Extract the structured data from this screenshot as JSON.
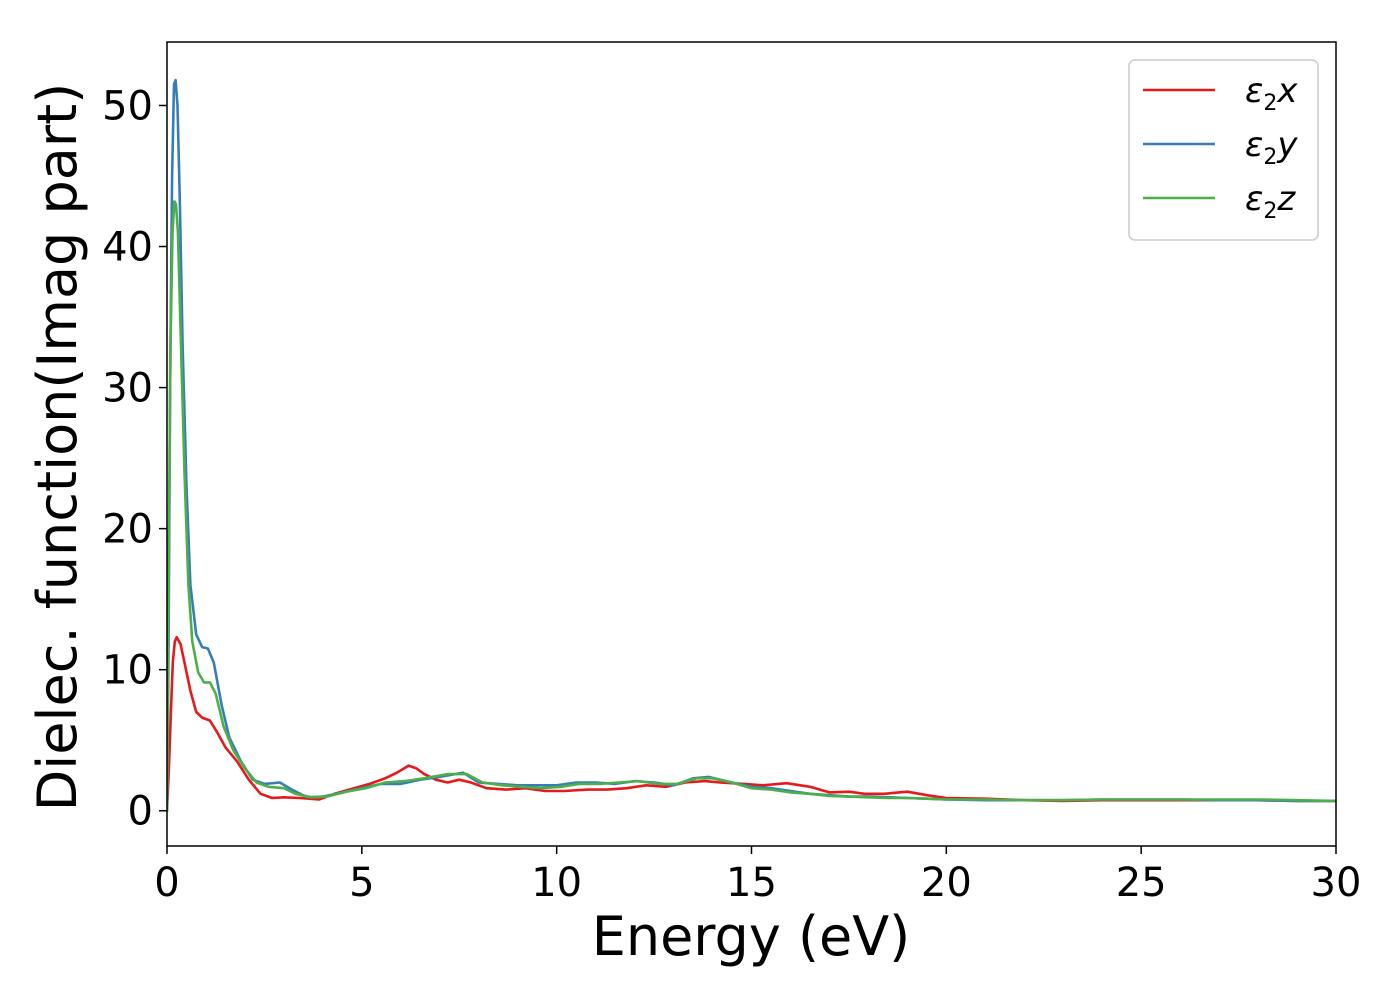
{
  "chart_data": {
    "type": "line",
    "xlabel": "Energy (eV)",
    "ylabel": "Dielec. function(Imag part)",
    "xlim": [
      0,
      30
    ],
    "ylim": [
      -2.5,
      54.5
    ],
    "xticks": [
      0,
      5,
      10,
      15,
      20,
      25,
      30
    ],
    "yticks": [
      0,
      10,
      20,
      30,
      40,
      50
    ],
    "grid": false,
    "legend_position": "top-right",
    "legend_symbol": "ε",
    "legend_subscript": "2",
    "series": [
      {
        "name": "ε2x",
        "var": "x",
        "color": "#e41a1c",
        "points": [
          [
            0,
            0
          ],
          [
            0.05,
            3.0
          ],
          [
            0.1,
            7.0
          ],
          [
            0.15,
            10.5
          ],
          [
            0.2,
            12.0
          ],
          [
            0.25,
            12.3
          ],
          [
            0.35,
            11.8
          ],
          [
            0.45,
            10.5
          ],
          [
            0.6,
            8.5
          ],
          [
            0.75,
            7.0
          ],
          [
            0.9,
            6.6
          ],
          [
            1.1,
            6.4
          ],
          [
            1.3,
            5.5
          ],
          [
            1.5,
            4.5
          ],
          [
            1.8,
            3.5
          ],
          [
            2.1,
            2.2
          ],
          [
            2.4,
            1.2
          ],
          [
            2.7,
            0.9
          ],
          [
            3.0,
            0.95
          ],
          [
            3.4,
            0.9
          ],
          [
            3.9,
            0.8
          ],
          [
            4.3,
            1.2
          ],
          [
            4.8,
            1.6
          ],
          [
            5.2,
            1.9
          ],
          [
            5.6,
            2.3
          ],
          [
            5.9,
            2.7
          ],
          [
            6.2,
            3.2
          ],
          [
            6.4,
            3.0
          ],
          [
            6.6,
            2.6
          ],
          [
            6.9,
            2.2
          ],
          [
            7.2,
            2.0
          ],
          [
            7.5,
            2.2
          ],
          [
            7.8,
            2.0
          ],
          [
            8.2,
            1.6
          ],
          [
            8.7,
            1.5
          ],
          [
            9.2,
            1.6
          ],
          [
            9.7,
            1.4
          ],
          [
            10.2,
            1.4
          ],
          [
            10.8,
            1.5
          ],
          [
            11.3,
            1.5
          ],
          [
            11.8,
            1.6
          ],
          [
            12.3,
            1.8
          ],
          [
            12.8,
            1.7
          ],
          [
            13.3,
            2.0
          ],
          [
            13.8,
            2.1
          ],
          [
            14.2,
            2.0
          ],
          [
            14.8,
            1.9
          ],
          [
            15.3,
            1.8
          ],
          [
            15.9,
            1.95
          ],
          [
            16.5,
            1.7
          ],
          [
            17.0,
            1.3
          ],
          [
            17.5,
            1.35
          ],
          [
            17.9,
            1.2
          ],
          [
            18.4,
            1.2
          ],
          [
            19.0,
            1.35
          ],
          [
            19.5,
            1.1
          ],
          [
            20.0,
            0.9
          ],
          [
            21.0,
            0.85
          ],
          [
            22.0,
            0.75
          ],
          [
            23.0,
            0.7
          ],
          [
            24.0,
            0.75
          ],
          [
            25.0,
            0.75
          ],
          [
            26.0,
            0.75
          ],
          [
            27.0,
            0.75
          ],
          [
            28.0,
            0.75
          ],
          [
            29.0,
            0.7
          ],
          [
            30.0,
            0.7
          ]
        ]
      },
      {
        "name": "ε2y",
        "var": "y",
        "color": "#377eb8",
        "points": [
          [
            0,
            0
          ],
          [
            0.04,
            12.0
          ],
          [
            0.08,
            30.0
          ],
          [
            0.13,
            45.0
          ],
          [
            0.18,
            51.5
          ],
          [
            0.22,
            51.8
          ],
          [
            0.27,
            50.0
          ],
          [
            0.33,
            43.0
          ],
          [
            0.4,
            33.0
          ],
          [
            0.5,
            23.0
          ],
          [
            0.6,
            16.0
          ],
          [
            0.75,
            12.5
          ],
          [
            0.9,
            11.6
          ],
          [
            1.05,
            11.5
          ],
          [
            1.2,
            10.5
          ],
          [
            1.4,
            7.5
          ],
          [
            1.6,
            5.2
          ],
          [
            1.9,
            3.5
          ],
          [
            2.2,
            2.2
          ],
          [
            2.5,
            1.9
          ],
          [
            2.9,
            2.0
          ],
          [
            3.2,
            1.5
          ],
          [
            3.6,
            0.95
          ],
          [
            4.0,
            1.0
          ],
          [
            4.5,
            1.3
          ],
          [
            5.0,
            1.6
          ],
          [
            5.5,
            1.9
          ],
          [
            6.0,
            1.9
          ],
          [
            6.5,
            2.2
          ],
          [
            7.0,
            2.4
          ],
          [
            7.6,
            2.7
          ],
          [
            8.0,
            2.0
          ],
          [
            8.5,
            1.9
          ],
          [
            9.0,
            1.8
          ],
          [
            9.5,
            1.8
          ],
          [
            10.0,
            1.8
          ],
          [
            10.5,
            2.0
          ],
          [
            11.0,
            2.0
          ],
          [
            11.5,
            1.9
          ],
          [
            12.0,
            2.1
          ],
          [
            12.5,
            2.0
          ],
          [
            13.0,
            1.8
          ],
          [
            13.5,
            2.3
          ],
          [
            13.9,
            2.4
          ],
          [
            14.5,
            2.0
          ],
          [
            15.0,
            1.7
          ],
          [
            15.5,
            1.6
          ],
          [
            16.0,
            1.4
          ],
          [
            16.5,
            1.2
          ],
          [
            17.0,
            1.1
          ],
          [
            17.5,
            1.0
          ],
          [
            18.0,
            1.0
          ],
          [
            18.5,
            0.95
          ],
          [
            19.0,
            0.9
          ],
          [
            19.5,
            0.85
          ],
          [
            20.0,
            0.8
          ],
          [
            21.0,
            0.75
          ],
          [
            22.0,
            0.75
          ],
          [
            23.0,
            0.75
          ],
          [
            24.0,
            0.8
          ],
          [
            25.0,
            0.8
          ],
          [
            26.0,
            0.8
          ],
          [
            27.0,
            0.75
          ],
          [
            28.0,
            0.75
          ],
          [
            29.0,
            0.7
          ],
          [
            30.0,
            0.7
          ]
        ]
      },
      {
        "name": "ε2z",
        "var": "z",
        "color": "#4daf4a",
        "points": [
          [
            0,
            0
          ],
          [
            0.04,
            16.0
          ],
          [
            0.09,
            33.0
          ],
          [
            0.14,
            41.0
          ],
          [
            0.19,
            43.2
          ],
          [
            0.23,
            43.0
          ],
          [
            0.28,
            41.0
          ],
          [
            0.35,
            34.0
          ],
          [
            0.45,
            24.0
          ],
          [
            0.55,
            16.0
          ],
          [
            0.65,
            12.0
          ],
          [
            0.8,
            9.8
          ],
          [
            0.95,
            9.1
          ],
          [
            1.1,
            9.1
          ],
          [
            1.25,
            8.3
          ],
          [
            1.45,
            6.0
          ],
          [
            1.7,
            4.3
          ],
          [
            2.0,
            3.0
          ],
          [
            2.3,
            2.0
          ],
          [
            2.6,
            1.7
          ],
          [
            3.0,
            1.6
          ],
          [
            3.3,
            1.2
          ],
          [
            3.7,
            0.95
          ],
          [
            4.1,
            1.0
          ],
          [
            4.6,
            1.35
          ],
          [
            5.1,
            1.6
          ],
          [
            5.6,
            2.0
          ],
          [
            6.1,
            2.1
          ],
          [
            6.6,
            2.3
          ],
          [
            7.2,
            2.6
          ],
          [
            7.7,
            2.6
          ],
          [
            8.1,
            2.0
          ],
          [
            8.6,
            1.8
          ],
          [
            9.1,
            1.7
          ],
          [
            9.6,
            1.6
          ],
          [
            10.1,
            1.7
          ],
          [
            10.6,
            1.9
          ],
          [
            11.1,
            1.9
          ],
          [
            11.6,
            2.0
          ],
          [
            12.1,
            2.1
          ],
          [
            12.6,
            1.9
          ],
          [
            13.1,
            1.9
          ],
          [
            13.6,
            2.3
          ],
          [
            14.0,
            2.3
          ],
          [
            14.5,
            2.0
          ],
          [
            15.0,
            1.6
          ],
          [
            15.5,
            1.5
          ],
          [
            16.0,
            1.3
          ],
          [
            16.5,
            1.2
          ],
          [
            17.0,
            1.05
          ],
          [
            17.5,
            1.0
          ],
          [
            18.0,
            0.95
          ],
          [
            18.5,
            0.9
          ],
          [
            19.0,
            0.9
          ],
          [
            19.5,
            0.85
          ],
          [
            20.0,
            0.8
          ],
          [
            21.0,
            0.8
          ],
          [
            22.0,
            0.75
          ],
          [
            23.0,
            0.75
          ],
          [
            24.0,
            0.8
          ],
          [
            25.0,
            0.8
          ],
          [
            26.0,
            0.8
          ],
          [
            27.0,
            0.8
          ],
          [
            28.0,
            0.8
          ],
          [
            29.0,
            0.75
          ],
          [
            30.0,
            0.7
          ]
        ]
      }
    ]
  }
}
